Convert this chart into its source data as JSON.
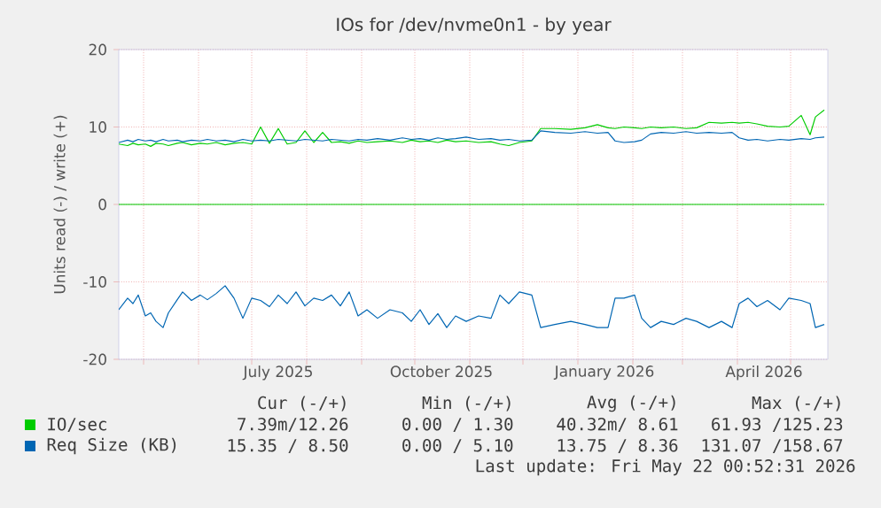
{
  "chart_data": {
    "type": "line",
    "title": "IOs for /dev/nvme0n1 - by year",
    "ylabel": "Units read (-) / write (+)",
    "x": [
      "2025-04-17",
      "2025-04-22",
      "2025-04-25",
      "2025-04-28",
      "2025-05-02",
      "2025-05-05",
      "2025-05-08",
      "2025-05-12",
      "2025-05-15",
      "2025-05-20",
      "2025-05-23",
      "2025-05-28",
      "2025-06-02",
      "2025-06-06",
      "2025-06-11",
      "2025-06-16",
      "2025-06-21",
      "2025-06-26",
      "2025-07-01",
      "2025-07-06",
      "2025-07-11",
      "2025-07-16",
      "2025-07-21",
      "2025-07-26",
      "2025-07-31",
      "2025-08-05",
      "2025-08-10",
      "2025-08-15",
      "2025-08-20",
      "2025-08-25",
      "2025-08-30",
      "2025-09-04",
      "2025-09-10",
      "2025-09-17",
      "2025-09-24",
      "2025-09-29",
      "2025-10-04",
      "2025-10-09",
      "2025-10-14",
      "2025-10-19",
      "2025-10-24",
      "2025-10-30",
      "2025-11-06",
      "2025-11-13",
      "2025-11-18",
      "2025-11-23",
      "2025-11-29",
      "2025-12-06",
      "2025-12-11",
      "2025-12-19",
      "2025-12-28",
      "2026-01-05",
      "2026-01-12",
      "2026-01-18",
      "2026-01-22",
      "2026-01-27",
      "2026-02-02",
      "2026-02-06",
      "2026-02-11",
      "2026-02-17",
      "2026-02-24",
      "2026-03-03",
      "2026-03-09",
      "2026-03-16",
      "2026-03-23",
      "2026-03-29",
      "2026-04-02",
      "2026-04-07",
      "2026-04-12",
      "2026-04-18",
      "2026-04-25",
      "2026-04-30",
      "2026-05-07",
      "2026-05-12",
      "2026-05-15",
      "2026-05-20"
    ],
    "series": [
      {
        "name": "IO/sec",
        "color": "#00cc00",
        "values": [
          7.8,
          7.6,
          7.9,
          7.7,
          7.8,
          7.5,
          7.9,
          7.8,
          7.6,
          7.9,
          8.0,
          7.7,
          7.9,
          7.8,
          8.0,
          7.7,
          7.9,
          8.0,
          7.8,
          10.0,
          7.9,
          9.8,
          7.8,
          8.0,
          9.5,
          8.0,
          9.3,
          8.0,
          8.1,
          7.9,
          8.2,
          8.0,
          8.1,
          8.2,
          8.0,
          8.3,
          8.1,
          8.2,
          8.0,
          8.3,
          8.1,
          8.2,
          8.0,
          8.1,
          7.8,
          7.6,
          8.0,
          8.2,
          9.8,
          9.8,
          9.7,
          9.9,
          10.3,
          9.9,
          9.8,
          10.0,
          9.9,
          9.8,
          10.0,
          9.9,
          10.0,
          9.8,
          9.9,
          10.6,
          10.5,
          10.6,
          10.5,
          10.6,
          10.4,
          10.1,
          10.0,
          10.1,
          11.5,
          9.0,
          11.3,
          12.2
        ]
      },
      {
        "color": "#00cc00",
        "values": [
          0,
          0,
          0,
          0,
          0,
          0,
          0,
          0,
          0,
          0,
          0,
          0,
          0,
          0,
          0,
          0,
          0,
          0,
          0,
          0,
          0,
          0,
          0,
          0,
          0,
          0,
          0,
          0,
          0,
          0,
          0,
          0,
          0,
          0,
          0,
          0,
          0,
          0,
          0,
          0,
          0,
          0,
          0,
          0,
          0,
          0,
          0,
          0,
          0,
          0,
          0,
          0,
          0,
          0,
          0,
          0,
          0,
          0,
          0,
          0,
          0,
          0,
          0,
          0,
          0,
          0,
          0,
          0,
          0,
          0,
          0,
          0,
          0,
          0,
          0,
          0
        ]
      },
      {
        "name": "Req Size (KB)",
        "color": "#0066b3",
        "values": [
          8.0,
          8.3,
          8.1,
          8.4,
          8.2,
          8.3,
          8.1,
          8.4,
          8.2,
          8.3,
          8.1,
          8.3,
          8.2,
          8.4,
          8.2,
          8.3,
          8.1,
          8.4,
          8.2,
          8.3,
          8.2,
          8.4,
          8.3,
          8.2,
          8.4,
          8.3,
          8.2,
          8.4,
          8.3,
          8.2,
          8.4,
          8.3,
          8.5,
          8.3,
          8.6,
          8.4,
          8.5,
          8.3,
          8.6,
          8.4,
          8.5,
          8.7,
          8.4,
          8.5,
          8.3,
          8.4,
          8.2,
          8.3,
          9.5,
          9.3,
          9.2,
          9.4,
          9.2,
          9.3,
          8.2,
          8.0,
          8.1,
          8.3,
          9.1,
          9.3,
          9.2,
          9.4,
          9.2,
          9.3,
          9.2,
          9.3,
          8.6,
          8.3,
          8.4,
          8.2,
          8.4,
          8.3,
          8.5,
          8.4,
          8.6,
          8.7
        ]
      },
      {
        "color": "#0066b3",
        "values": [
          -13.6,
          -12.1,
          -12.8,
          -11.7,
          -14.4,
          -14.0,
          -15.1,
          -15.9,
          -14.0,
          -12.3,
          -11.3,
          -12.4,
          -11.7,
          -12.3,
          -11.5,
          -10.5,
          -12.1,
          -14.7,
          -12.1,
          -12.4,
          -13.2,
          -11.7,
          -12.8,
          -11.3,
          -13.1,
          -12.1,
          -12.4,
          -11.7,
          -13.1,
          -11.3,
          -14.4,
          -13.6,
          -14.7,
          -13.6,
          -14.0,
          -15.1,
          -13.6,
          -15.5,
          -14.1,
          -15.9,
          -14.4,
          -15.1,
          -14.4,
          -14.7,
          -11.7,
          -12.8,
          -11.3,
          -11.7,
          -15.9,
          -15.5,
          -15.1,
          -15.5,
          -15.9,
          -15.9,
          -12.1,
          -12.1,
          -11.7,
          -14.7,
          -15.9,
          -15.1,
          -15.5,
          -14.7,
          -15.1,
          -15.9,
          -15.1,
          -15.9,
          -12.8,
          -12.1,
          -13.2,
          -12.4,
          -13.6,
          -12.1,
          -12.4,
          -12.8,
          -15.9,
          -15.5
        ]
      }
    ],
    "xlim": [
      "2025-04-17",
      "2026-05-22"
    ],
    "xticks": [
      {
        "value": "2025-05-01",
        "label": null
      },
      {
        "value": "2025-06-01",
        "label": null
      },
      {
        "value": "2025-07-01",
        "label": null
      },
      {
        "value": "2025-07-16",
        "label": "July 2025"
      },
      {
        "value": "2025-08-01",
        "label": null
      },
      {
        "value": "2025-09-01",
        "label": null
      },
      {
        "value": "2025-10-01",
        "label": null
      },
      {
        "value": "2025-10-16",
        "label": "October 2025"
      },
      {
        "value": "2025-11-01",
        "label": null
      },
      {
        "value": "2025-12-01",
        "label": null
      },
      {
        "value": "2026-01-01",
        "label": null
      },
      {
        "value": "2026-01-16",
        "label": "January 2026"
      },
      {
        "value": "2026-02-01",
        "label": null
      },
      {
        "value": "2026-03-01",
        "label": null
      },
      {
        "value": "2026-04-01",
        "label": null
      },
      {
        "value": "2026-04-16",
        "label": "April 2026"
      },
      {
        "value": "2026-05-01",
        "label": null
      }
    ],
    "ylim": [
      -20,
      20
    ],
    "yticks": [
      -20,
      -10,
      0,
      10,
      20
    ],
    "grid": true,
    "legend": "bottom",
    "marker": "none",
    "line_style": "solid",
    "annotations": [
      "Cur (-/+)",
      "Min (-/+)",
      "Avg (-/+)",
      "Max (-/+)",
      "7.39m/12.26",
      "0.00 / 1.30",
      "40.32m/ 8.61",
      "61.93 /125.23",
      "15.35 / 8.50",
      "0.00 / 5.10",
      "13.75 / 8.36",
      "131.07 /158.67",
      "Last update: Fri May 22 00:52:31 2026"
    ]
  }
}
